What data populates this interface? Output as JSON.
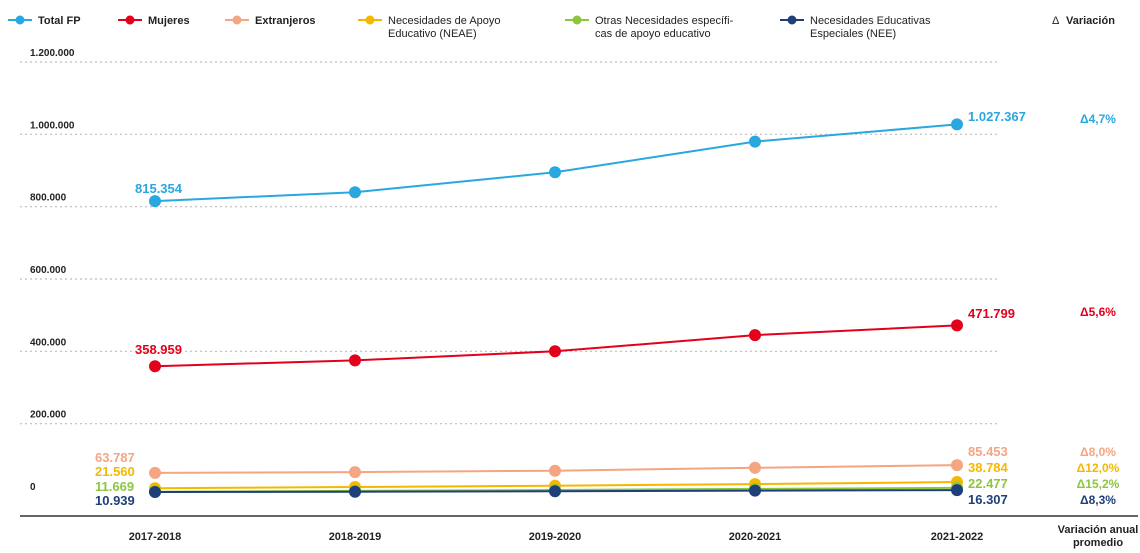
{
  "chart_data": {
    "type": "line",
    "categories": [
      "2017-2018",
      "2018-2019",
      "2019-2020",
      "2020-2021",
      "2021-2022"
    ],
    "extra_column_label": [
      "Variación anual",
      "promedio"
    ],
    "ylim": [
      0,
      1200000
    ],
    "yticks": [
      {
        "value": 0,
        "label": "0"
      },
      {
        "value": 200000,
        "label": "200.000"
      },
      {
        "value": 400000,
        "label": "400.000"
      },
      {
        "value": 600000,
        "label": "600.000"
      },
      {
        "value": 800000,
        "label": "800.000"
      },
      {
        "value": 1000000,
        "label": "1.000.000"
      },
      {
        "value": 1200000,
        "label": "1.200.000"
      }
    ],
    "grid": true,
    "legend_position": "top",
    "variation_legend": {
      "symbol": "Δ",
      "label": "Variación"
    },
    "series": [
      {
        "name": [
          "Total FP"
        ],
        "color": "#29a8e0",
        "values": [
          815354,
          840000,
          895000,
          980000,
          1027367
        ],
        "first_label": "815.354",
        "last_label": "1.027.367",
        "variation": "Δ4,7%"
      },
      {
        "name": [
          "Mujeres"
        ],
        "color": "#e3001b",
        "values": [
          358959,
          375000,
          400000,
          445000,
          471799
        ],
        "first_label": "358.959",
        "last_label": "471.799",
        "variation": "Δ5,6%"
      },
      {
        "name": [
          "Extranjeros"
        ],
        "color": "#f4a582",
        "values": [
          63787,
          66000,
          70000,
          78000,
          85453
        ],
        "first_label": "63.787",
        "last_label": "85.453",
        "variation": "Δ8,0%"
      },
      {
        "name": [
          "Necesidades de Apoyo",
          "Educativo (NEAE)"
        ],
        "color": "#f5b800",
        "values": [
          21560,
          25000,
          28500,
          33000,
          38784
        ],
        "first_label": "21.560",
        "last_label": "38.784",
        "variation": "Δ12,0%"
      },
      {
        "name": [
          "Otras Necesidades específi-",
          "cas de apoyo educativo"
        ],
        "color": "#8cc63f",
        "values": [
          11669,
          14000,
          16500,
          19500,
          22477
        ],
        "first_label": "11.669",
        "last_label": "22.477",
        "variation": "Δ15,2%"
      },
      {
        "name": [
          "Necesidades Educativas",
          "Especiales (NEE)"
        ],
        "color": "#1d3f7a",
        "values": [
          10939,
          11800,
          12900,
          14800,
          16307
        ],
        "first_label": "10.939",
        "last_label": "16.307",
        "variation": "Δ8,3%"
      }
    ]
  }
}
